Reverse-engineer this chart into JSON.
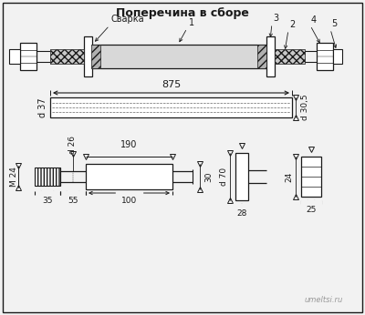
{
  "title": "Поперечина в сборе",
  "bg_color": "#f2f2f2",
  "line_color": "#1a1a1a",
  "labels": {
    "сварка": "Сварка",
    "num1": "1",
    "num2": "2",
    "num3": "3",
    "num4": "4",
    "num5": "5",
    "dim875": "875",
    "d37": "d 37",
    "d26": "d 26",
    "d305": "d 30,5",
    "dim190": "190",
    "dim35": "35",
    "dim55": "55",
    "dim100": "100",
    "dim30": "30",
    "M24": "М 24",
    "d70": "d 70",
    "dim28": "28",
    "dim24": "24",
    "dim25": "25",
    "watermark": "umeltsi.ru"
  }
}
